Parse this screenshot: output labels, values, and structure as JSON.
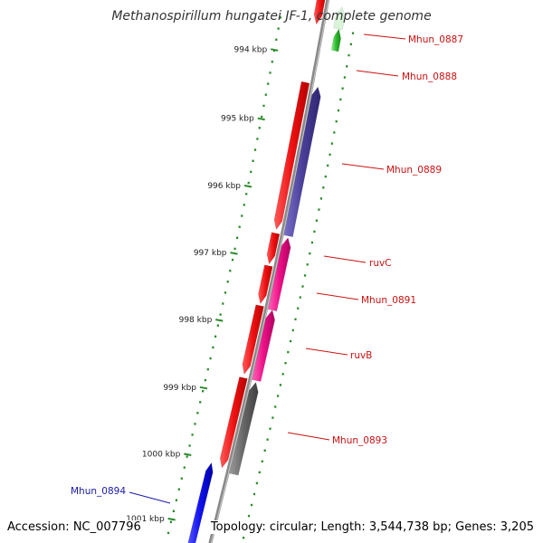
{
  "title": "Methanospirillum hungatei JF-1, complete genome",
  "accession": "Accession: NC_007796",
  "topology": "Topology: circular; Length: 3,544,738 bp; Genes: 3,205",
  "colors": {
    "backbone": "#8a8a8a",
    "ticks": "#2a8a2a",
    "tick_label": "#222222",
    "label_red": "#cc1111",
    "label_blue": "#1a1aaa"
  },
  "ticks": [
    {
      "label": "994 kbp"
    },
    {
      "label": "995 kbp"
    },
    {
      "label": "996 kbp"
    },
    {
      "label": "997 kbp"
    },
    {
      "label": "998 kbp"
    },
    {
      "label": "999 kbp"
    },
    {
      "label": "1000 kbp"
    },
    {
      "label": "1001 kbp"
    }
  ],
  "features": [
    {
      "name": "Mhun_0887",
      "track": "outer",
      "color": "#2dbb2d",
      "label_color": "#cc1111"
    },
    {
      "name": "Mhun_0888",
      "track": "inner",
      "color": "#ee1111",
      "label_color": "#cc1111"
    },
    {
      "name": "Mhun_0889",
      "track": "outer",
      "color": "#4a3f9a",
      "label_color": "#cc1111"
    },
    {
      "name": "ruvC",
      "track": "outer",
      "color": "#ee1188",
      "label_color": "#cc1111"
    },
    {
      "name": "Mhun_0891",
      "track": "outer",
      "color": "#ee1188",
      "label_color": "#cc1111"
    },
    {
      "name": "ruvB",
      "track": "outer",
      "color": "#ee1188",
      "label_color": "#cc1111"
    },
    {
      "name": "Mhun_0893",
      "track": "outer",
      "color": "#666666",
      "label_color": "#cc1111"
    },
    {
      "name": "Mhun_0894",
      "track": "left",
      "color": "#1111ee",
      "label_color": "#1a1aaa"
    }
  ]
}
